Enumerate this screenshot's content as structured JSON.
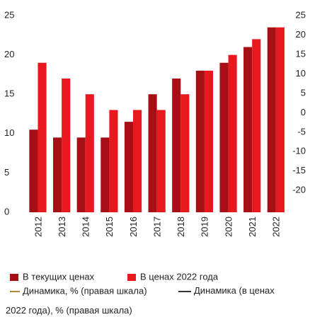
{
  "chart_data": {
    "type": "bar",
    "categories": [
      "2012",
      "2013",
      "2014",
      "2015",
      "2016",
      "2017",
      "2018",
      "2019",
      "2020",
      "2021",
      "2022"
    ],
    "series": [
      {
        "name": "В текущих ценах",
        "color": "#a50f15",
        "values": [
          10.5,
          9.5,
          9.5,
          9.5,
          11.5,
          15,
          17,
          18,
          19,
          21,
          23.5
        ]
      },
      {
        "name": "В ценах 2022 года",
        "color": "#e8191e",
        "values": [
          19,
          17,
          15,
          13,
          13,
          13,
          15,
          18,
          20,
          22,
          23.5
        ]
      }
    ],
    "legend_lines": [
      "Динамика, % (правая шкала)",
      "Динамика (в ценах 2022 года), % (правая шкала)"
    ],
    "ylim": [
      0,
      25
    ],
    "yticks": [
      0,
      5,
      10,
      15,
      20,
      25
    ],
    "y2lim": [
      -25.6,
      25
    ],
    "y2ticks": [
      -20,
      -15,
      -10,
      -5,
      0,
      5,
      10,
      15,
      20,
      25
    ]
  }
}
